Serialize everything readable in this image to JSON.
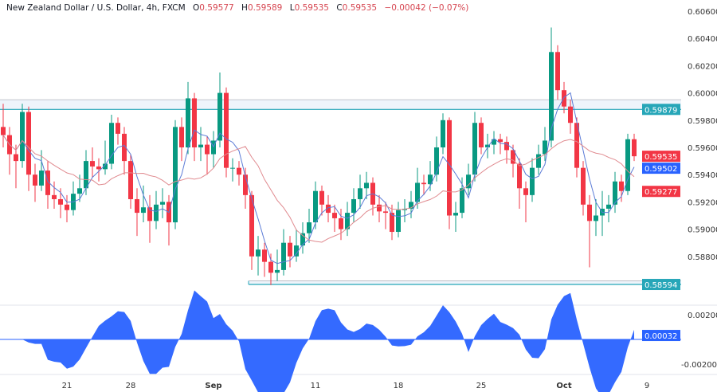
{
  "header": {
    "symbol": "New Zealand Dollar / U.S. Dollar, 4h, FXCM",
    "open_label": "O",
    "open": "0.59577",
    "high_label": "H",
    "high": "0.59589",
    "low_label": "L",
    "low": "0.59535",
    "close_label": "C",
    "close": "0.59535",
    "change": "−0.00042 (−0.07%)"
  },
  "colors": {
    "up": "#089981",
    "down": "#f23645",
    "fast_ma": "#5b7bd6",
    "slow_ma": "#e08a8f",
    "level": "#26a6b8",
    "oscillator": "#2962ff"
  },
  "chart_data": [
    {
      "type": "candlestick",
      "title": "",
      "x_tick_labels": [
        {
          "label": "21",
          "candle": 10
        },
        {
          "label": "28",
          "candle": 20
        },
        {
          "label": "Sep",
          "candle": 33
        },
        {
          "label": "11",
          "candle": 49
        },
        {
          "label": "18",
          "candle": 62
        },
        {
          "label": "25",
          "candle": 75
        },
        {
          "label": "Oct",
          "candle": 88
        },
        {
          "label": "9",
          "candle": 101
        }
      ],
      "y_ticks": [
        "0.60600",
        "0.60400",
        "0.60200",
        "0.60000",
        "0.59800",
        "0.59600",
        "0.59400",
        "0.59200",
        "0.59000",
        "0.58800"
      ],
      "ylim": [
        0.5852,
        0.6068
      ],
      "grid": false,
      "candles_ohlc": [
        [
          0.5975,
          0.5992,
          0.596,
          0.5969
        ],
        [
          0.5969,
          0.5975,
          0.594,
          0.5955
        ],
        [
          0.5955,
          0.5962,
          0.593,
          0.595
        ],
        [
          0.595,
          0.5992,
          0.5945,
          0.5986
        ],
        [
          0.5986,
          0.599,
          0.5928,
          0.594
        ],
        [
          0.594,
          0.5948,
          0.592,
          0.5932
        ],
        [
          0.5932,
          0.5958,
          0.5928,
          0.5943
        ],
        [
          0.5943,
          0.595,
          0.5915,
          0.5925
        ],
        [
          0.5925,
          0.5935,
          0.5915,
          0.5922
        ],
        [
          0.5922,
          0.593,
          0.5908,
          0.5918
        ],
        [
          0.5918,
          0.5925,
          0.5905,
          0.5914
        ],
        [
          0.5914,
          0.5935,
          0.591,
          0.5926
        ],
        [
          0.5926,
          0.594,
          0.592,
          0.593
        ],
        [
          0.593,
          0.5958,
          0.5925,
          0.595
        ],
        [
          0.595,
          0.596,
          0.5938,
          0.5946
        ],
        [
          0.5946,
          0.5952,
          0.5935,
          0.5944
        ],
        [
          0.5944,
          0.5965,
          0.594,
          0.5948
        ],
        [
          0.5948,
          0.5984,
          0.5944,
          0.5978
        ],
        [
          0.5978,
          0.5982,
          0.5962,
          0.597
        ],
        [
          0.597,
          0.5975,
          0.594,
          0.595
        ],
        [
          0.595,
          0.5955,
          0.5915,
          0.5922
        ],
        [
          0.5922,
          0.593,
          0.5895,
          0.5912
        ],
        [
          0.5912,
          0.5932,
          0.5905,
          0.5916
        ],
        [
          0.5916,
          0.5925,
          0.589,
          0.5906
        ],
        [
          0.5906,
          0.5928,
          0.59,
          0.5918
        ],
        [
          0.5918,
          0.593,
          0.5908,
          0.592
        ],
        [
          0.592,
          0.5925,
          0.5888,
          0.5905
        ],
        [
          0.5905,
          0.598,
          0.59,
          0.5975
        ],
        [
          0.5975,
          0.5982,
          0.595,
          0.596
        ],
        [
          0.596,
          0.6008,
          0.5955,
          0.5996
        ],
        [
          0.5996,
          0.6,
          0.595,
          0.596
        ],
        [
          0.596,
          0.5975,
          0.595,
          0.5962
        ],
        [
          0.5962,
          0.5968,
          0.594,
          0.5955
        ],
        [
          0.5955,
          0.5972,
          0.5945,
          0.5965
        ],
        [
          0.5965,
          0.6015,
          0.596,
          0.6
        ],
        [
          0.6,
          0.6004,
          0.5938,
          0.5945
        ],
        [
          0.5945,
          0.5952,
          0.5935,
          0.5945
        ],
        [
          0.5945,
          0.595,
          0.5932,
          0.594
        ],
        [
          0.594,
          0.5945,
          0.5915,
          0.5925
        ],
        [
          0.5925,
          0.5928,
          0.587,
          0.588
        ],
        [
          0.588,
          0.5895,
          0.5866,
          0.5885
        ],
        [
          0.5885,
          0.589,
          0.5865,
          0.5876
        ],
        [
          0.5876,
          0.5882,
          0.5859,
          0.5868
        ],
        [
          0.5868,
          0.5885,
          0.5862,
          0.587
        ],
        [
          0.587,
          0.59,
          0.5866,
          0.589
        ],
        [
          0.589,
          0.5895,
          0.5872,
          0.588
        ],
        [
          0.588,
          0.59,
          0.5876,
          0.5888
        ],
        [
          0.5888,
          0.5905,
          0.5882,
          0.5897
        ],
        [
          0.5897,
          0.5915,
          0.589,
          0.5905
        ],
        [
          0.5905,
          0.5935,
          0.59,
          0.5928
        ],
        [
          0.5928,
          0.5932,
          0.591,
          0.5918
        ],
        [
          0.5918,
          0.5925,
          0.5905,
          0.5912
        ],
        [
          0.5912,
          0.5918,
          0.5898,
          0.5908
        ],
        [
          0.5908,
          0.5915,
          0.5892,
          0.59
        ],
        [
          0.59,
          0.592,
          0.5895,
          0.5912
        ],
        [
          0.5912,
          0.593,
          0.5905,
          0.5922
        ],
        [
          0.5922,
          0.594,
          0.5915,
          0.593
        ],
        [
          0.593,
          0.5942,
          0.5922,
          0.5934
        ],
        [
          0.5934,
          0.5938,
          0.591,
          0.5918
        ],
        [
          0.5918,
          0.5925,
          0.5905,
          0.5913
        ],
        [
          0.5913,
          0.592,
          0.59,
          0.5912
        ],
        [
          0.5912,
          0.5918,
          0.5892,
          0.5898
        ],
        [
          0.5898,
          0.592,
          0.5894,
          0.5914
        ],
        [
          0.5914,
          0.5922,
          0.5905,
          0.5915
        ],
        [
          0.5915,
          0.5928,
          0.5908,
          0.592
        ],
        [
          0.592,
          0.5945,
          0.5915,
          0.5934
        ],
        [
          0.5934,
          0.594,
          0.5925,
          0.5933
        ],
        [
          0.5933,
          0.595,
          0.5928,
          0.594
        ],
        [
          0.594,
          0.5968,
          0.5935,
          0.596
        ],
        [
          0.596,
          0.5985,
          0.5955,
          0.598
        ],
        [
          0.598,
          0.5982,
          0.59,
          0.591
        ],
        [
          0.591,
          0.592,
          0.5898,
          0.5912
        ],
        [
          0.5912,
          0.5938,
          0.5908,
          0.593
        ],
        [
          0.593,
          0.5948,
          0.5925,
          0.594
        ],
        [
          0.594,
          0.5986,
          0.5935,
          0.5978
        ],
        [
          0.5978,
          0.5982,
          0.5955,
          0.596
        ],
        [
          0.596,
          0.597,
          0.5952,
          0.5962
        ],
        [
          0.5962,
          0.5972,
          0.5955,
          0.5966
        ],
        [
          0.5966,
          0.597,
          0.5955,
          0.5964
        ],
        [
          0.5964,
          0.5968,
          0.5948,
          0.5958
        ],
        [
          0.5958,
          0.5962,
          0.5938,
          0.5948
        ],
        [
          0.5948,
          0.5952,
          0.5915,
          0.593
        ],
        [
          0.593,
          0.5935,
          0.5905,
          0.5925
        ],
        [
          0.5925,
          0.5952,
          0.592,
          0.5945
        ],
        [
          0.5945,
          0.5962,
          0.594,
          0.5955
        ],
        [
          0.5955,
          0.5975,
          0.595,
          0.5965
        ],
        [
          0.5965,
          0.6048,
          0.596,
          0.603
        ],
        [
          0.603,
          0.6035,
          0.5995,
          0.6002
        ],
        [
          0.6002,
          0.6008,
          0.5985,
          0.599
        ],
        [
          0.599,
          0.5995,
          0.597,
          0.5978
        ],
        [
          0.5978,
          0.5982,
          0.5938,
          0.5945
        ],
        [
          0.5945,
          0.595,
          0.591,
          0.5918
        ],
        [
          0.5918,
          0.5925,
          0.5872,
          0.5906
        ],
        [
          0.5906,
          0.5922,
          0.5895,
          0.591
        ],
        [
          0.591,
          0.5928,
          0.5895,
          0.5915
        ],
        [
          0.5915,
          0.5925,
          0.5905,
          0.5918
        ],
        [
          0.5918,
          0.5942,
          0.5912,
          0.5935
        ],
        [
          0.5935,
          0.594,
          0.592,
          0.5928
        ],
        [
          0.5928,
          0.597,
          0.5925,
          0.5966
        ],
        [
          0.5966,
          0.597,
          0.595,
          0.59535
        ]
      ],
      "horizontal_levels": [
        {
          "value": 0.59879,
          "label": "0.59879",
          "zone_top": 0.5995,
          "from_candle": 0
        },
        {
          "value": 0.58594,
          "label": "0.58594",
          "zone_top": 0.5862,
          "from_candle": 39
        }
      ],
      "price_tags": [
        {
          "label": "0.59535",
          "value": 0.59535,
          "color": "#f23645"
        },
        {
          "label": "0.59502",
          "value": 0.59502,
          "color": "#2962ff"
        },
        {
          "label": "0.59277",
          "value": 0.59277,
          "color": "#f23645"
        }
      ]
    },
    {
      "type": "area",
      "title": "",
      "y_ticks": [
        "0.00200",
        "-0.00200"
      ],
      "ylim": [
        -0.0026,
        0.0026
      ],
      "current_value": {
        "label": "0.00032",
        "value": 0.00032
      }
    }
  ]
}
